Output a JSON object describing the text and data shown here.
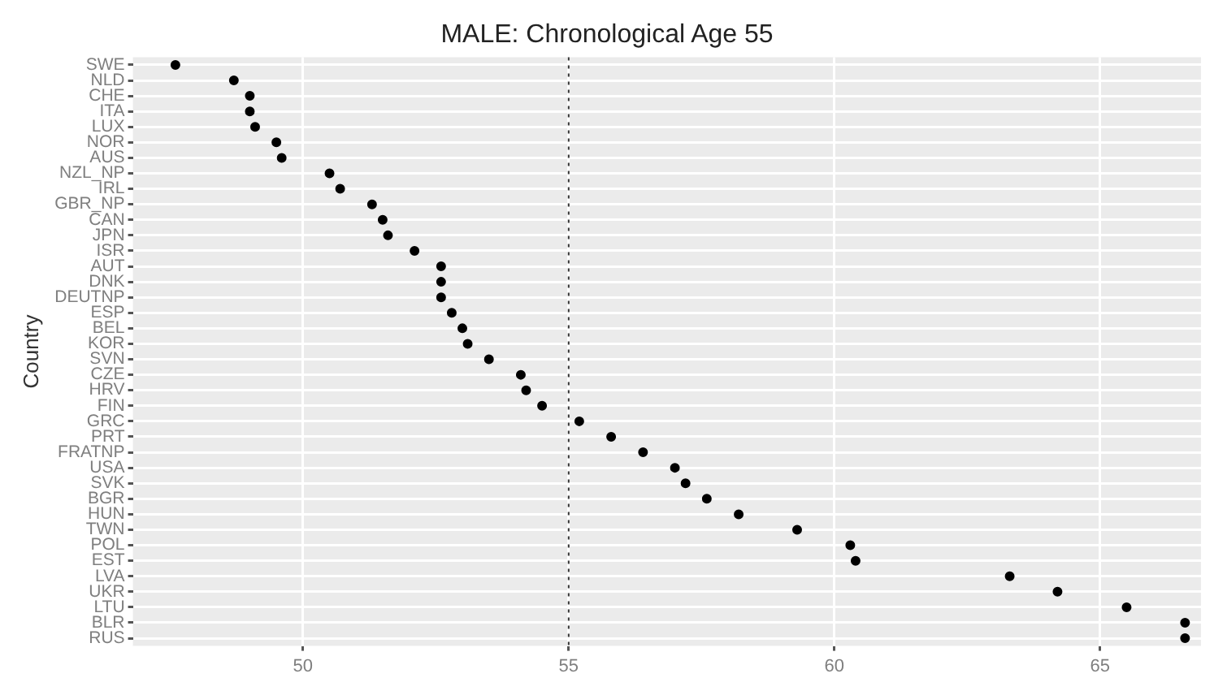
{
  "chart_data": {
    "type": "scatter",
    "orientation": "horizontal",
    "title": "MALE: Chronological Age 55",
    "ylabel": "Country",
    "categories": [
      "SWE",
      "NLD",
      "CHE",
      "ITA",
      "LUX",
      "NOR",
      "AUS",
      "NZL_NP",
      "IRL",
      "GBR_NP",
      "CAN",
      "JPN",
      "ISR",
      "AUT",
      "DNK",
      "DEUTNP",
      "ESP",
      "BEL",
      "KOR",
      "SVN",
      "CZE",
      "HRV",
      "FIN",
      "GRC",
      "PRT",
      "FRATNP",
      "USA",
      "SVK",
      "BGR",
      "HUN",
      "TWN",
      "POL",
      "EST",
      "LVA",
      "UKR",
      "LTU",
      "BLR",
      "RUS"
    ],
    "values": [
      47.6,
      48.7,
      49.0,
      49.0,
      49.1,
      49.5,
      49.6,
      50.5,
      50.7,
      51.3,
      51.5,
      51.6,
      52.1,
      52.6,
      52.6,
      52.6,
      52.8,
      53.0,
      53.1,
      53.5,
      54.1,
      54.2,
      54.5,
      55.2,
      55.8,
      56.4,
      57.0,
      57.2,
      57.6,
      58.2,
      59.3,
      60.3,
      60.4,
      63.3,
      64.2,
      65.5,
      66.6,
      66.6
    ],
    "color": "#000000",
    "marker": "circle",
    "xlim": [
      46.8,
      66.9
    ],
    "xticks": [
      50,
      55,
      60,
      65
    ],
    "grid": true,
    "ref_lines": [
      {
        "axis": "x",
        "value": 55,
        "line_style": "dotted",
        "color": "#333333"
      }
    ]
  }
}
